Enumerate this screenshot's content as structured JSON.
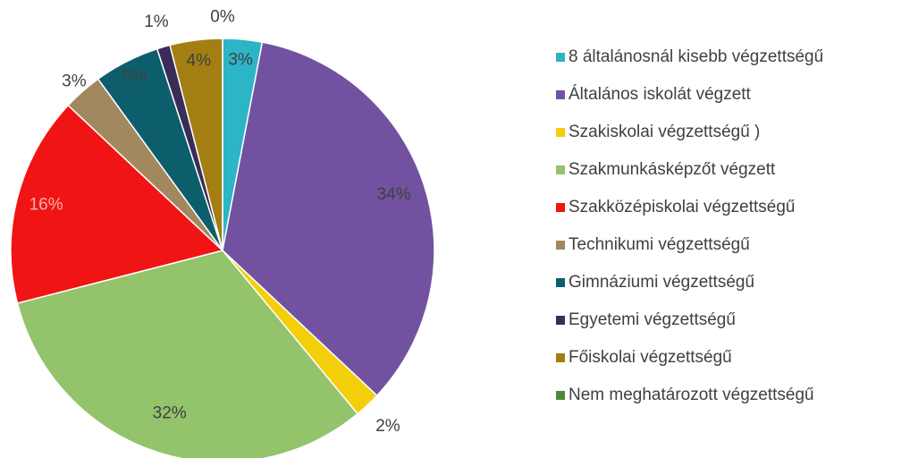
{
  "chart_data": {
    "type": "pie",
    "categories": [
      "8 általánosnál kisebb végzettségű",
      "Általános iskolát végzett",
      "Szakiskolai végzettségű )",
      "Szakmunkásképzőt végzett",
      "Szakközépiskolai végzettségű",
      "Technikumi végzettségű",
      "Gimnáziumi végzettségű",
      "Egyetemi végzettségű",
      "Főiskolai végzettségű",
      "Nem meghatározott végzettségű"
    ],
    "values": [
      3,
      34,
      2,
      32,
      16,
      3,
      5,
      1,
      4,
      0
    ],
    "value_labels": [
      "3%",
      "34%",
      "2%",
      "32%",
      "16%",
      "3%",
      "5%",
      "1%",
      "4%",
      "0%"
    ],
    "colors": [
      "#2cb5c6",
      "#7252a0",
      "#f2cf0a",
      "#93c36b",
      "#f01414",
      "#a2885f",
      "#0d5e6c",
      "#3a2c58",
      "#a37e12",
      "#4f8a38"
    ],
    "legend": "right"
  }
}
